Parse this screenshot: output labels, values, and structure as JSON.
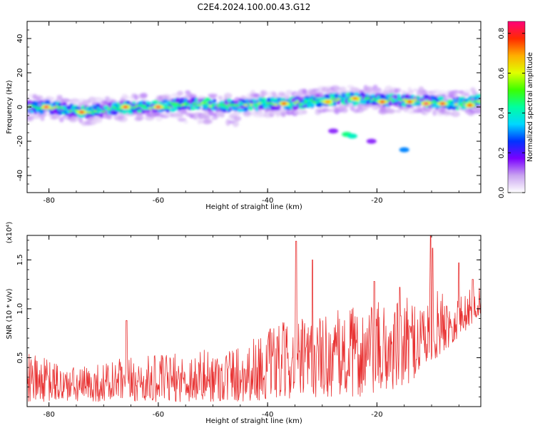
{
  "figure_title": "C2E4.2024.100.00.43.G12",
  "chart_data": [
    {
      "type": "heatmap",
      "xlabel": "Height of straight line (km)",
      "ylabel": "Frequency (Hz)",
      "colorbar_label": "Normalized spectral amplitude",
      "xlim": [
        -84,
        -1
      ],
      "ylim": [
        -50,
        50
      ],
      "x_ticks": [
        -80,
        -60,
        -40,
        -20
      ],
      "y_ticks": [
        -40,
        -20,
        0,
        20,
        40
      ],
      "colorbar_range": [
        0,
        0.86
      ],
      "colorbar_ticks": [
        "0.0",
        "0.2",
        "0.4",
        "0.6",
        "0.8"
      ],
      "colormap": [
        "#ffffff",
        "#c9a3f0",
        "#7a00ff",
        "#0033ff",
        "#00d8ff",
        "#00ffa0",
        "#3cff00",
        "#e0ff00",
        "#ffae00",
        "#ff2a00",
        "#ff007a"
      ],
      "ridge": [
        {
          "x": -84,
          "y": 0
        },
        {
          "x": -80,
          "y": 0
        },
        {
          "x": -74,
          "y": -3
        },
        {
          "x": -70,
          "y": -2
        },
        {
          "x": -66,
          "y": 0
        },
        {
          "x": -60,
          "y": 0
        },
        {
          "x": -55,
          "y": 2
        },
        {
          "x": -50,
          "y": 1
        },
        {
          "x": -45,
          "y": 1
        },
        {
          "x": -40,
          "y": 2
        },
        {
          "x": -35,
          "y": 2
        },
        {
          "x": -30,
          "y": 4
        },
        {
          "x": -25,
          "y": 5
        },
        {
          "x": -20,
          "y": 4
        },
        {
          "x": -15,
          "y": 4
        },
        {
          "x": -10,
          "y": 3
        },
        {
          "x": -5,
          "y": 2
        },
        {
          "x": -1,
          "y": 4
        }
      ],
      "peaks": [
        {
          "x": -80.5,
          "y": 0,
          "amplitude": 0.85
        },
        {
          "x": -74,
          "y": -3,
          "amplitude": 0.8
        },
        {
          "x": -66,
          "y": 0,
          "amplitude": 0.82
        },
        {
          "x": -60,
          "y": 0,
          "amplitude": 0.84
        },
        {
          "x": -37,
          "y": 2,
          "amplitude": 0.75
        },
        {
          "x": -29,
          "y": 3,
          "amplitude": 0.7
        },
        {
          "x": -24,
          "y": 5,
          "amplitude": 0.72
        },
        {
          "x": -19,
          "y": 3,
          "amplitude": 0.8
        },
        {
          "x": -14,
          "y": 3,
          "amplitude": 0.78
        },
        {
          "x": -11,
          "y": 2,
          "amplitude": 0.86
        },
        {
          "x": -8,
          "y": 2,
          "amplitude": 0.82
        },
        {
          "x": -3,
          "y": 1,
          "amplitude": 0.8
        }
      ],
      "side_features": [
        {
          "x": -25.5,
          "y": -16,
          "amplitude": 0.45
        },
        {
          "x": -24.5,
          "y": -17,
          "amplitude": 0.4
        },
        {
          "x": -15,
          "y": -25,
          "amplitude": 0.3
        },
        {
          "x": -28,
          "y": -14,
          "amplitude": 0.15
        },
        {
          "x": -21,
          "y": -20,
          "amplitude": 0.15
        }
      ]
    },
    {
      "type": "line",
      "xlabel": "Height of straight line (km)",
      "ylabel": "SNR (10 * v/v)",
      "scale_label": "(x10⁴)",
      "xlim": [
        -84,
        -1
      ],
      "ylim": [
        0,
        1.75
      ],
      "x_ticks": [
        -80,
        -60,
        -40,
        -20
      ],
      "y_ticks": [
        "0.5",
        "1.0",
        "1.5"
      ],
      "y_tick_values": [
        0.5,
        1.0,
        1.5
      ],
      "color": "#e83030",
      "samples": 900,
      "envelope": [
        {
          "x": -84,
          "low": 0.05,
          "high": 0.55
        },
        {
          "x": -75,
          "low": 0.05,
          "high": 0.4
        },
        {
          "x": -66,
          "low": 0.05,
          "high": 0.5
        },
        {
          "x": -56,
          "low": 0.05,
          "high": 0.55
        },
        {
          "x": -45,
          "low": 0.05,
          "high": 0.65
        },
        {
          "x": -38,
          "low": 0.08,
          "high": 0.85
        },
        {
          "x": -30,
          "low": 0.1,
          "high": 0.95
        },
        {
          "x": -22,
          "low": 0.1,
          "high": 1.05
        },
        {
          "x": -15,
          "low": 0.2,
          "high": 1.1
        },
        {
          "x": -10,
          "low": 0.45,
          "high": 1.2
        },
        {
          "x": -5,
          "low": 0.7,
          "high": 1.15
        },
        {
          "x": -1,
          "low": 0.95,
          "high": 1.25
        }
      ],
      "spikes": [
        {
          "x": -65.8,
          "y": 0.88
        },
        {
          "x": -34.8,
          "y": 1.69
        },
        {
          "x": -31.8,
          "y": 1.5
        },
        {
          "x": -20.5,
          "y": 1.28
        },
        {
          "x": -15.8,
          "y": 1.22
        },
        {
          "x": -10.2,
          "y": 1.75
        },
        {
          "x": -9.8,
          "y": 1.62
        },
        {
          "x": -5.0,
          "y": 1.47
        },
        {
          "x": -2.5,
          "y": 1.3
        }
      ]
    }
  ]
}
